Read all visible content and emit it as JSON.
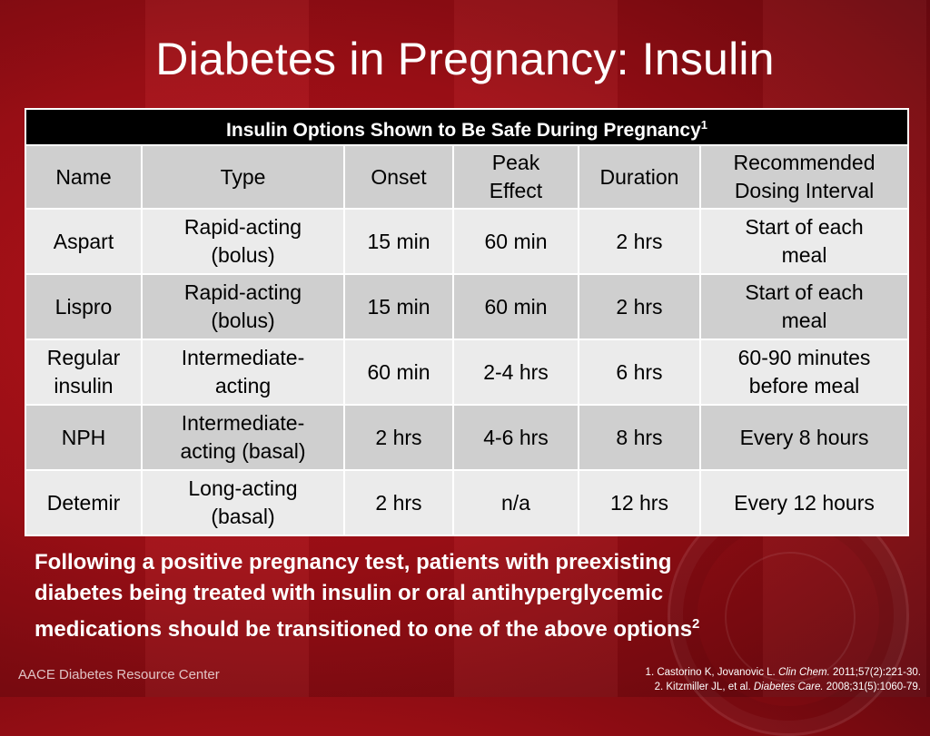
{
  "slide": {
    "title": "Diabetes in Pregnancy: Insulin",
    "table_caption": "Insulin Options Shown to Be Safe During Pregnancy",
    "table_caption_ref": "1",
    "columns": [
      {
        "line1": "Name",
        "line2": ""
      },
      {
        "line1": "Type",
        "line2": ""
      },
      {
        "line1": "Onset",
        "line2": ""
      },
      {
        "line1": "Peak",
        "line2": "Effect"
      },
      {
        "line1": "Duration",
        "line2": ""
      },
      {
        "line1": "Recommended",
        "line2": "Dosing Interval"
      }
    ],
    "rows": [
      {
        "name": [
          "Aspart",
          ""
        ],
        "type": [
          "Rapid-acting",
          "(bolus)"
        ],
        "onset": "15 min",
        "peak": "60 min",
        "duration": "2 hrs",
        "interval": [
          "Start of each",
          "meal"
        ]
      },
      {
        "name": [
          "Lispro",
          ""
        ],
        "type": [
          "Rapid-acting",
          "(bolus)"
        ],
        "onset": "15 min",
        "peak": "60 min",
        "duration": "2 hrs",
        "interval": [
          "Start of each",
          "meal"
        ]
      },
      {
        "name": [
          "Regular",
          "insulin"
        ],
        "type": [
          "Intermediate-",
          "acting"
        ],
        "onset": "60 min",
        "peak": "2-4 hrs",
        "duration": "6 hrs",
        "interval": [
          "60-90 minutes",
          "before meal"
        ]
      },
      {
        "name": [
          "NPH",
          ""
        ],
        "type": [
          "Intermediate-",
          "acting (basal)"
        ],
        "onset": "2 hrs",
        "peak": "4-6 hrs",
        "duration": "8 hrs",
        "interval": [
          "Every 8 hours",
          ""
        ]
      },
      {
        "name": [
          "Detemir",
          ""
        ],
        "type": [
          "Long-acting",
          "(basal)"
        ],
        "onset": "2 hrs",
        "peak": "n/a",
        "duration": "12 hrs",
        "interval": [
          "Every 12 hours",
          ""
        ]
      }
    ],
    "body_line1": "Following a positive pregnancy test, patients with preexisting",
    "body_line2": "diabetes being treated with insulin or oral antihyperglycemic",
    "body_line3": "medications should be transitioned to one of the above options",
    "body_ref": "2",
    "footer_brand": "AACE Diabetes Resource Center",
    "references": [
      {
        "prefix": "1. Castorino K, Jovanovic L. ",
        "journal": "Clin Chem.",
        "suffix": " 2011;57(2):221-30."
      },
      {
        "prefix": "2. Kitzmiller JL, et al. ",
        "journal": "Diabetes Care.",
        "suffix": " 2008;31(5):1060-79."
      }
    ]
  }
}
